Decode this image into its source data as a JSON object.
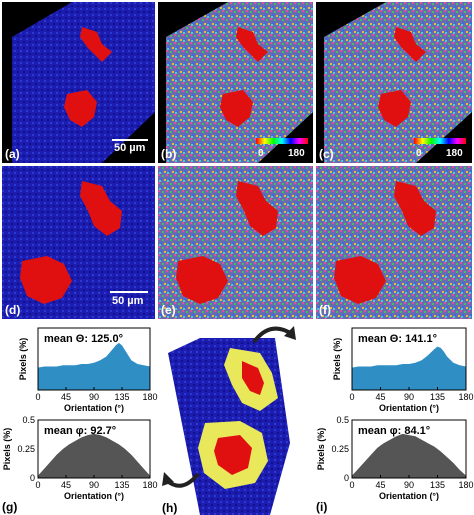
{
  "panels": {
    "a": {
      "label": "(a)",
      "scalebar": "50 µm"
    },
    "b": {
      "label": "(b)",
      "cbar_min": "0",
      "cbar_max": "180"
    },
    "c": {
      "label": "(c)",
      "cbar_min": "0",
      "cbar_max": "180"
    },
    "d": {
      "label": "(d)",
      "scalebar": "50 µm"
    },
    "e": {
      "label": "(e)"
    },
    "f": {
      "label": "(f)"
    },
    "g": {
      "label": "(g)"
    },
    "h": {
      "label": "(h)"
    },
    "i": {
      "label": "(i)"
    }
  },
  "colors": {
    "theta_fill": "#2f8fc4",
    "phi_fill": "#555555",
    "background_blue": "#1a1aa8",
    "fiber_red": "#e01010",
    "halo_yellow": "#e8e85a"
  },
  "chart_data": [
    {
      "id": "g-theta",
      "type": "area",
      "annotation": "mean Θ: 125.0°",
      "xlabel": "Orientation (°)",
      "ylabel": "Pixels (%)",
      "xlim": [
        0,
        180
      ],
      "ylim": [
        0,
        0.5
      ],
      "xticks": [
        "0",
        "45",
        "90",
        "135",
        "180"
      ],
      "yticks": [],
      "x": [
        0,
        10,
        20,
        30,
        40,
        50,
        60,
        70,
        80,
        90,
        100,
        110,
        115,
        120,
        125,
        130,
        135,
        140,
        145,
        150,
        160,
        170,
        180
      ],
      "values": [
        0.18,
        0.19,
        0.19,
        0.19,
        0.2,
        0.2,
        0.2,
        0.21,
        0.21,
        0.22,
        0.24,
        0.27,
        0.3,
        0.33,
        0.36,
        0.38,
        0.36,
        0.32,
        0.28,
        0.24,
        0.21,
        0.2,
        0.19
      ]
    },
    {
      "id": "g-phi",
      "type": "area",
      "annotation": "mean φ: 92.7°",
      "xlabel": "Orientation (°)",
      "ylabel": "Pixels (%)",
      "xlim": [
        0,
        180
      ],
      "ylim": [
        0,
        0.5
      ],
      "xticks": [
        "0",
        "45",
        "90",
        "135",
        "180"
      ],
      "yticks": [
        "0",
        "0.25",
        "0.5"
      ],
      "x": [
        0,
        10,
        20,
        30,
        40,
        50,
        60,
        70,
        80,
        90,
        100,
        110,
        120,
        130,
        140,
        150,
        160,
        170,
        180
      ],
      "values": [
        0.02,
        0.08,
        0.14,
        0.2,
        0.25,
        0.29,
        0.32,
        0.35,
        0.37,
        0.38,
        0.37,
        0.35,
        0.32,
        0.29,
        0.25,
        0.2,
        0.14,
        0.08,
        0.02
      ]
    },
    {
      "id": "i-theta",
      "type": "area",
      "annotation": "mean Θ: 141.1°",
      "xlabel": "Orientation (°)",
      "ylabel": "Pixels (%)",
      "xlim": [
        0,
        180
      ],
      "ylim": [
        0,
        0.5
      ],
      "xticks": [
        "0",
        "45",
        "90",
        "135",
        "180"
      ],
      "yticks": [],
      "x": [
        0,
        10,
        20,
        30,
        40,
        50,
        60,
        70,
        80,
        90,
        100,
        110,
        120,
        130,
        135,
        140,
        145,
        150,
        160,
        170,
        180
      ],
      "values": [
        0.18,
        0.19,
        0.19,
        0.19,
        0.2,
        0.2,
        0.2,
        0.2,
        0.21,
        0.21,
        0.22,
        0.24,
        0.28,
        0.33,
        0.35,
        0.34,
        0.31,
        0.27,
        0.22,
        0.2,
        0.19
      ]
    },
    {
      "id": "i-phi",
      "type": "area",
      "annotation": "mean φ: 84.1°",
      "xlabel": "Orientation (°)",
      "ylabel": "Pixels (%)",
      "xlim": [
        0,
        180
      ],
      "ylim": [
        0,
        0.5
      ],
      "xticks": [
        "0",
        "45",
        "90",
        "135",
        "180"
      ],
      "yticks": [
        "0",
        "0.25",
        "0.5"
      ],
      "x": [
        0,
        10,
        20,
        30,
        40,
        50,
        60,
        70,
        80,
        90,
        100,
        110,
        120,
        130,
        140,
        150,
        160,
        170,
        180
      ],
      "values": [
        0.02,
        0.08,
        0.14,
        0.2,
        0.26,
        0.3,
        0.33,
        0.36,
        0.38,
        0.37,
        0.36,
        0.33,
        0.3,
        0.27,
        0.23,
        0.18,
        0.13,
        0.07,
        0.02
      ]
    }
  ]
}
